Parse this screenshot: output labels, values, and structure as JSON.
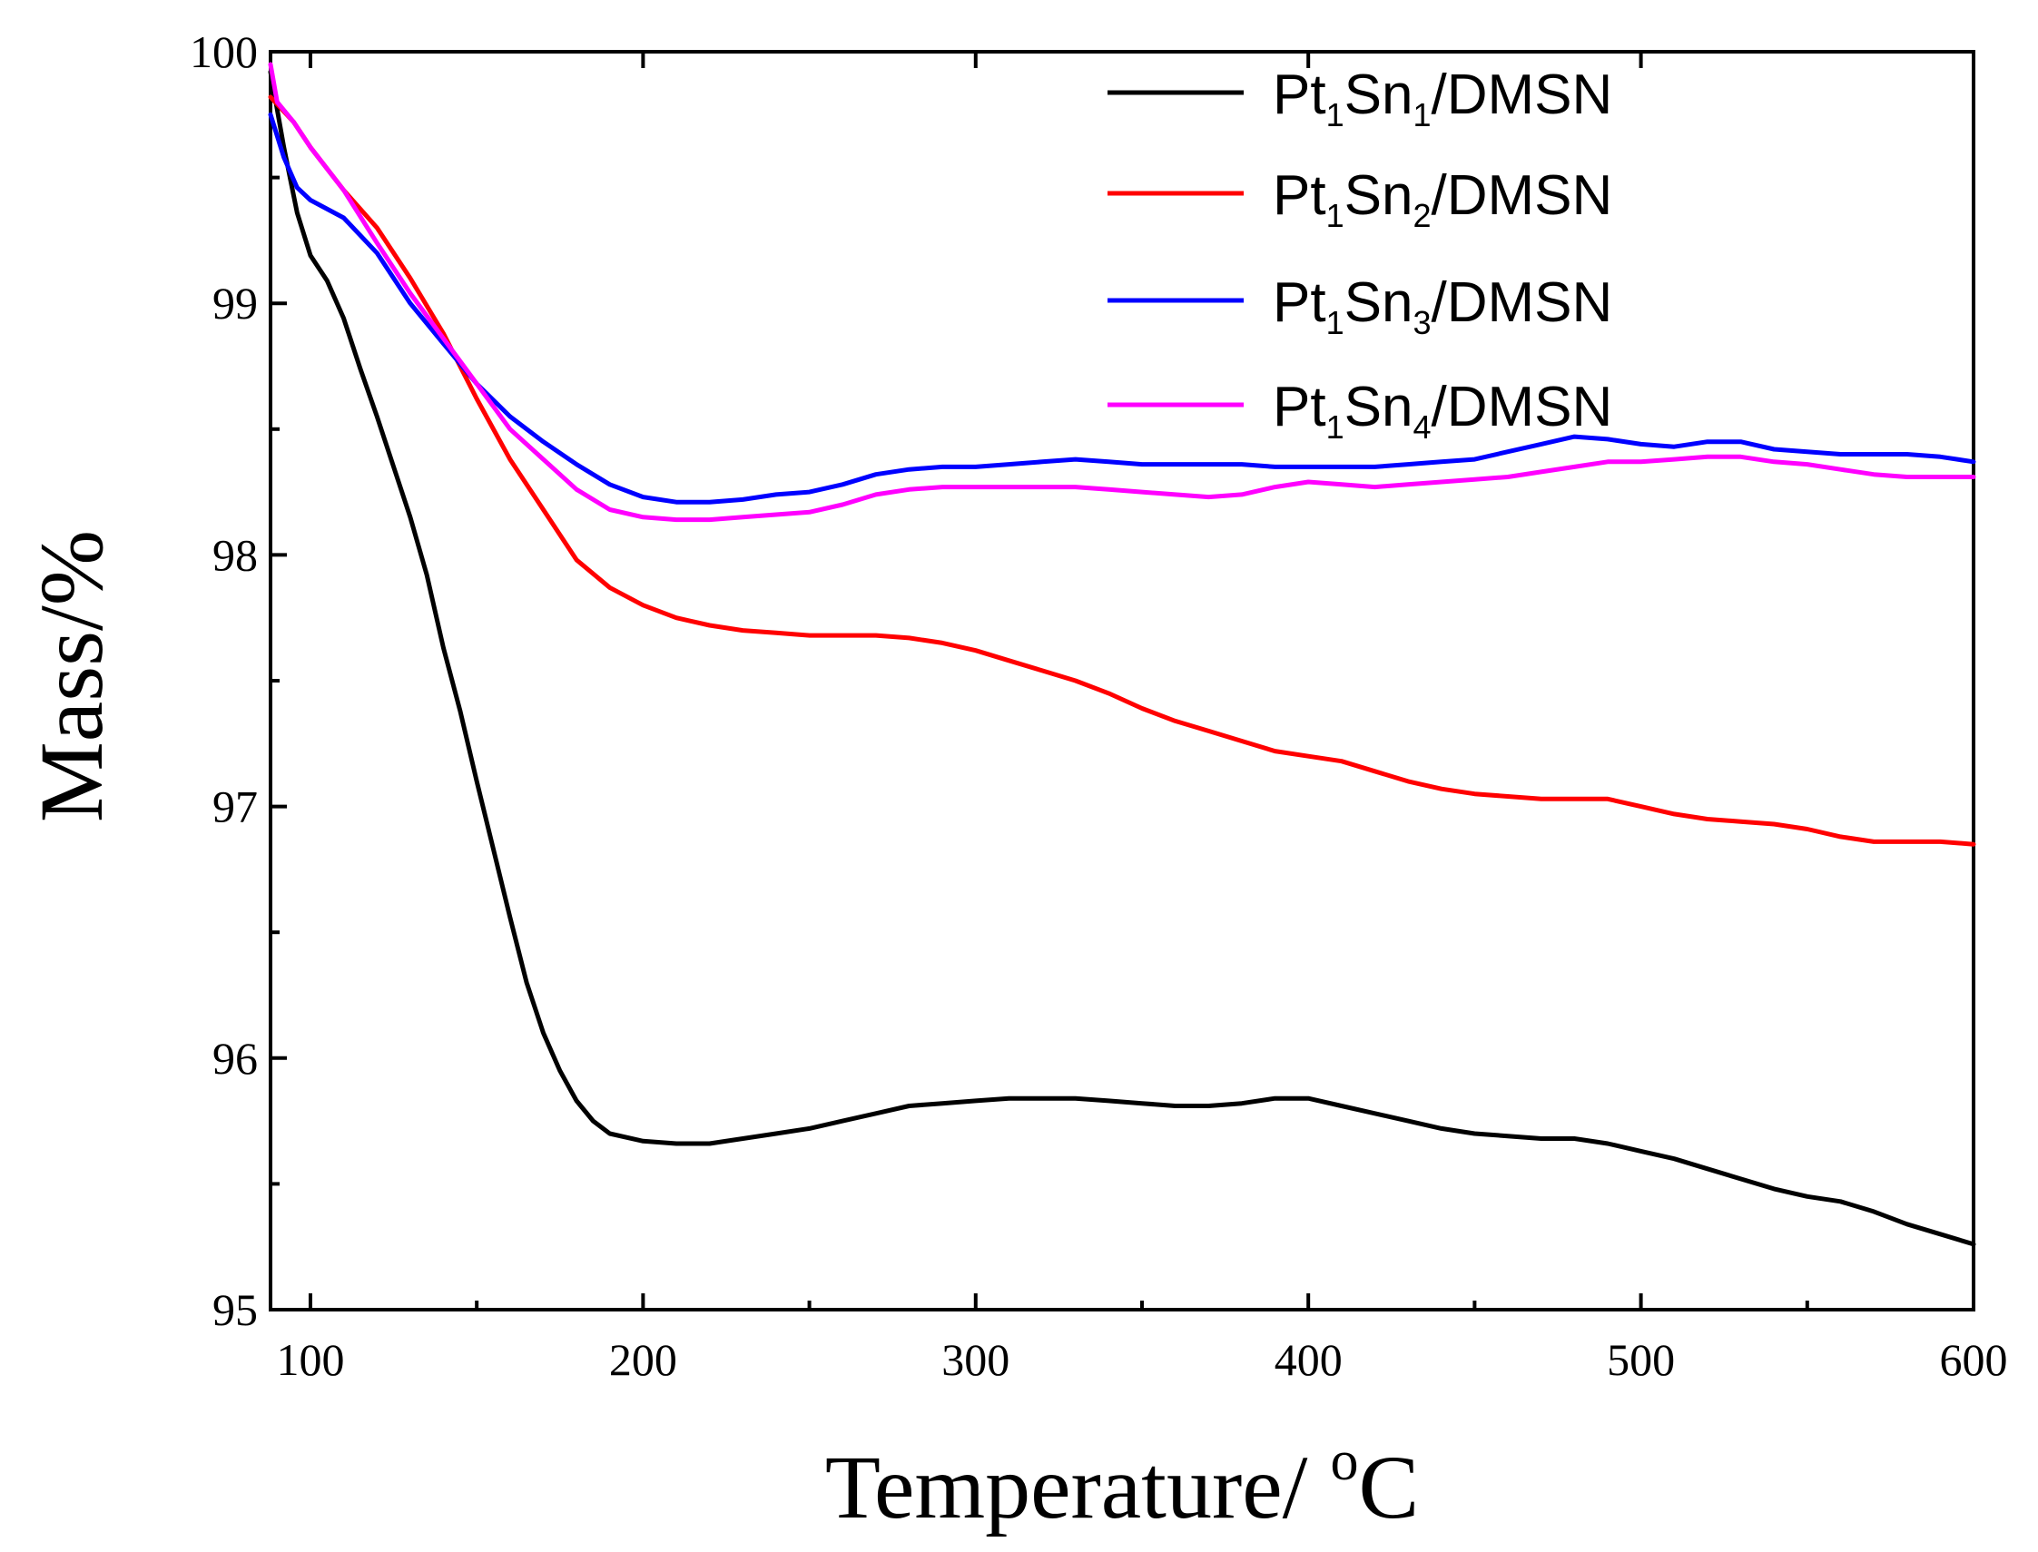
{
  "chart_data": {
    "type": "line",
    "title": "",
    "xlabel": "Temperature/ oC",
    "xlabel_parts": {
      "text": "Temperature/ ",
      "sup": "o",
      "unit": "C"
    },
    "ylabel": "Mass/%",
    "xlim": [
      88,
      600
    ],
    "ylim": [
      95,
      100
    ],
    "xticks": [
      "100",
      "200",
      "300",
      "400",
      "500",
      "600"
    ],
    "yticks": [
      "95",
      "96",
      "97",
      "98",
      "99",
      "100"
    ],
    "legend_position": "top-right",
    "series": [
      {
        "name": "Pt1Sn1/DMSN",
        "label": {
          "a": "Pt",
          "s1": "1",
          "b": "Sn",
          "s2": "1",
          "c": "/DMSN"
        },
        "color": "#000000",
        "points": [
          [
            88,
            99.92
          ],
          [
            92,
            99.62
          ],
          [
            96,
            99.36
          ],
          [
            100,
            99.19
          ],
          [
            105,
            99.09
          ],
          [
            110,
            98.94
          ],
          [
            115,
            98.74
          ],
          [
            120,
            98.55
          ],
          [
            125,
            98.35
          ],
          [
            130,
            98.15
          ],
          [
            135,
            97.92
          ],
          [
            140,
            97.63
          ],
          [
            145,
            97.38
          ],
          [
            150,
            97.1
          ],
          [
            155,
            96.83
          ],
          [
            160,
            96.56
          ],
          [
            165,
            96.3
          ],
          [
            170,
            96.1
          ],
          [
            175,
            95.95
          ],
          [
            180,
            95.83
          ],
          [
            185,
            95.75
          ],
          [
            190,
            95.7
          ],
          [
            200,
            95.67
          ],
          [
            210,
            95.66
          ],
          [
            220,
            95.66
          ],
          [
            230,
            95.68
          ],
          [
            240,
            95.7
          ],
          [
            250,
            95.72
          ],
          [
            260,
            95.75
          ],
          [
            270,
            95.78
          ],
          [
            280,
            95.81
          ],
          [
            290,
            95.82
          ],
          [
            300,
            95.83
          ],
          [
            310,
            95.84
          ],
          [
            320,
            95.84
          ],
          [
            330,
            95.84
          ],
          [
            340,
            95.83
          ],
          [
            350,
            95.82
          ],
          [
            360,
            95.81
          ],
          [
            370,
            95.81
          ],
          [
            380,
            95.82
          ],
          [
            390,
            95.84
          ],
          [
            400,
            95.84
          ],
          [
            410,
            95.81
          ],
          [
            420,
            95.78
          ],
          [
            430,
            95.75
          ],
          [
            440,
            95.72
          ],
          [
            450,
            95.7
          ],
          [
            460,
            95.69
          ],
          [
            470,
            95.68
          ],
          [
            480,
            95.68
          ],
          [
            490,
            95.66
          ],
          [
            500,
            95.63
          ],
          [
            510,
            95.6
          ],
          [
            520,
            95.56
          ],
          [
            530,
            95.52
          ],
          [
            540,
            95.48
          ],
          [
            550,
            95.45
          ],
          [
            560,
            95.43
          ],
          [
            570,
            95.39
          ],
          [
            580,
            95.34
          ],
          [
            590,
            95.3
          ],
          [
            600,
            95.26
          ]
        ]
      },
      {
        "name": "Pt1Sn2/DMSN",
        "label": {
          "a": "Pt",
          "s1": "1",
          "b": "Sn",
          "s2": "2",
          "c": "/DMSN"
        },
        "color": "#ff0000",
        "points": [
          [
            88,
            99.82
          ],
          [
            95,
            99.72
          ],
          [
            100,
            99.62
          ],
          [
            110,
            99.45
          ],
          [
            120,
            99.3
          ],
          [
            130,
            99.1
          ],
          [
            140,
            98.88
          ],
          [
            150,
            98.62
          ],
          [
            160,
            98.38
          ],
          [
            170,
            98.18
          ],
          [
            180,
            97.98
          ],
          [
            190,
            97.87
          ],
          [
            200,
            97.8
          ],
          [
            210,
            97.75
          ],
          [
            220,
            97.72
          ],
          [
            230,
            97.7
          ],
          [
            240,
            97.69
          ],
          [
            250,
            97.68
          ],
          [
            260,
            97.68
          ],
          [
            270,
            97.68
          ],
          [
            280,
            97.67
          ],
          [
            290,
            97.65
          ],
          [
            300,
            97.62
          ],
          [
            310,
            97.58
          ],
          [
            320,
            97.54
          ],
          [
            330,
            97.5
          ],
          [
            340,
            97.45
          ],
          [
            350,
            97.39
          ],
          [
            360,
            97.34
          ],
          [
            370,
            97.3
          ],
          [
            380,
            97.26
          ],
          [
            390,
            97.22
          ],
          [
            400,
            97.2
          ],
          [
            410,
            97.18
          ],
          [
            420,
            97.14
          ],
          [
            430,
            97.1
          ],
          [
            440,
            97.07
          ],
          [
            450,
            97.05
          ],
          [
            460,
            97.04
          ],
          [
            470,
            97.03
          ],
          [
            480,
            97.03
          ],
          [
            490,
            97.03
          ],
          [
            500,
            97.0
          ],
          [
            510,
            96.97
          ],
          [
            520,
            96.95
          ],
          [
            530,
            96.94
          ],
          [
            540,
            96.93
          ],
          [
            550,
            96.91
          ],
          [
            560,
            96.88
          ],
          [
            570,
            96.86
          ],
          [
            580,
            96.86
          ],
          [
            590,
            96.86
          ],
          [
            600,
            96.85
          ]
        ]
      },
      {
        "name": "Pt1Sn3/DMSN",
        "label": {
          "a": "Pt",
          "s1": "1",
          "b": "Sn",
          "s2": "3",
          "c": "/DMSN"
        },
        "color": "#0000ff",
        "points": [
          [
            88,
            99.75
          ],
          [
            92,
            99.58
          ],
          [
            96,
            99.46
          ],
          [
            100,
            99.41
          ],
          [
            110,
            99.34
          ],
          [
            120,
            99.2
          ],
          [
            130,
            99.0
          ],
          [
            140,
            98.84
          ],
          [
            150,
            98.68
          ],
          [
            160,
            98.55
          ],
          [
            170,
            98.45
          ],
          [
            180,
            98.36
          ],
          [
            190,
            98.28
          ],
          [
            200,
            98.23
          ],
          [
            210,
            98.21
          ],
          [
            220,
            98.21
          ],
          [
            230,
            98.22
          ],
          [
            240,
            98.24
          ],
          [
            250,
            98.25
          ],
          [
            260,
            98.28
          ],
          [
            270,
            98.32
          ],
          [
            280,
            98.34
          ],
          [
            290,
            98.35
          ],
          [
            300,
            98.35
          ],
          [
            310,
            98.36
          ],
          [
            320,
            98.37
          ],
          [
            330,
            98.38
          ],
          [
            340,
            98.37
          ],
          [
            350,
            98.36
          ],
          [
            360,
            98.36
          ],
          [
            370,
            98.36
          ],
          [
            380,
            98.36
          ],
          [
            390,
            98.35
          ],
          [
            400,
            98.35
          ],
          [
            410,
            98.35
          ],
          [
            420,
            98.35
          ],
          [
            430,
            98.36
          ],
          [
            440,
            98.37
          ],
          [
            450,
            98.38
          ],
          [
            460,
            98.41
          ],
          [
            470,
            98.44
          ],
          [
            480,
            98.47
          ],
          [
            490,
            98.46
          ],
          [
            500,
            98.44
          ],
          [
            510,
            98.43
          ],
          [
            520,
            98.45
          ],
          [
            530,
            98.45
          ],
          [
            540,
            98.42
          ],
          [
            550,
            98.41
          ],
          [
            560,
            98.4
          ],
          [
            570,
            98.4
          ],
          [
            580,
            98.4
          ],
          [
            590,
            98.39
          ],
          [
            600,
            98.37
          ]
        ]
      },
      {
        "name": "Pt1Sn4/DMSN",
        "label": {
          "a": "Pt",
          "s1": "1",
          "b": "Sn",
          "s2": "4",
          "c": "/DMSN"
        },
        "color": "#ff00ff",
        "points": [
          [
            88,
            99.95
          ],
          [
            90,
            99.8
          ],
          [
            95,
            99.72
          ],
          [
            100,
            99.62
          ],
          [
            110,
            99.45
          ],
          [
            120,
            99.24
          ],
          [
            130,
            99.04
          ],
          [
            140,
            98.86
          ],
          [
            150,
            98.68
          ],
          [
            160,
            98.5
          ],
          [
            170,
            98.38
          ],
          [
            180,
            98.26
          ],
          [
            190,
            98.18
          ],
          [
            200,
            98.15
          ],
          [
            210,
            98.14
          ],
          [
            220,
            98.14
          ],
          [
            230,
            98.15
          ],
          [
            240,
            98.16
          ],
          [
            250,
            98.17
          ],
          [
            260,
            98.2
          ],
          [
            270,
            98.24
          ],
          [
            280,
            98.26
          ],
          [
            290,
            98.27
          ],
          [
            300,
            98.27
          ],
          [
            310,
            98.27
          ],
          [
            320,
            98.27
          ],
          [
            330,
            98.27
          ],
          [
            340,
            98.26
          ],
          [
            350,
            98.25
          ],
          [
            360,
            98.24
          ],
          [
            370,
            98.23
          ],
          [
            380,
            98.24
          ],
          [
            390,
            98.27
          ],
          [
            400,
            98.29
          ],
          [
            410,
            98.28
          ],
          [
            420,
            98.27
          ],
          [
            430,
            98.28
          ],
          [
            440,
            98.29
          ],
          [
            450,
            98.3
          ],
          [
            460,
            98.31
          ],
          [
            470,
            98.33
          ],
          [
            480,
            98.35
          ],
          [
            490,
            98.37
          ],
          [
            500,
            98.37
          ],
          [
            510,
            98.38
          ],
          [
            520,
            98.39
          ],
          [
            530,
            98.39
          ],
          [
            540,
            98.37
          ],
          [
            550,
            98.36
          ],
          [
            560,
            98.34
          ],
          [
            570,
            98.32
          ],
          [
            580,
            98.31
          ],
          [
            590,
            98.31
          ],
          [
            600,
            98.31
          ]
        ]
      }
    ]
  }
}
